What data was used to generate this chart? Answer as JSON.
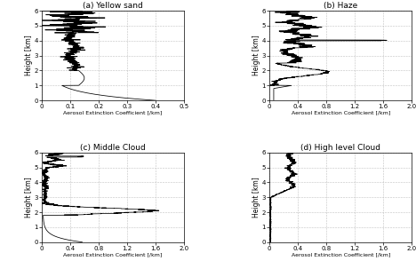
{
  "panels": [
    {
      "title": "(a) Yellow sand",
      "xlabel": "Aerosol Extinction Coefficient [/km]",
      "ylabel": "Height [km]",
      "xlim": [
        0,
        0.5
      ],
      "ylim": [
        0,
        6
      ],
      "xticks": [
        0,
        0.1,
        0.2,
        0.3,
        0.4,
        0.5
      ],
      "yticks": [
        0,
        1,
        2,
        3,
        4,
        5,
        6
      ],
      "profile_type": "yellow_sand"
    },
    {
      "title": "(b) Haze",
      "xlabel": "Aerosol Extinction Coefficient [/km]",
      "ylabel": "Height [km]",
      "xlim": [
        0,
        2
      ],
      "ylim": [
        0,
        6
      ],
      "xticks": [
        0,
        0.4,
        0.8,
        1.2,
        1.6,
        2.0
      ],
      "yticks": [
        0,
        1,
        2,
        3,
        4,
        5,
        6
      ],
      "profile_type": "haze"
    },
    {
      "title": "(c) Middle Cloud",
      "xlabel": "Aerosol Extinction Coefficient [/km]",
      "ylabel": "Height [km]",
      "xlim": [
        0,
        2
      ],
      "ylim": [
        0,
        6
      ],
      "xticks": [
        0,
        0.4,
        0.8,
        1.2,
        1.6,
        2.0
      ],
      "yticks": [
        0,
        1,
        2,
        3,
        4,
        5,
        6
      ],
      "profile_type": "middle_cloud"
    },
    {
      "title": "(d) High level Cloud",
      "xlabel": "Aerosol Extinction Coefficient [/km]",
      "ylabel": "Height [km]",
      "xlim": [
        0,
        2
      ],
      "ylim": [
        0,
        6
      ],
      "xticks": [
        0,
        0.4,
        0.8,
        1.2,
        1.6,
        2.0
      ],
      "yticks": [
        0,
        1,
        2,
        3,
        4,
        5,
        6
      ],
      "profile_type": "high_cloud"
    }
  ],
  "line_color": "black",
  "background_color": "white",
  "grid_color": "#bbbbbb",
  "grid_style": "--"
}
